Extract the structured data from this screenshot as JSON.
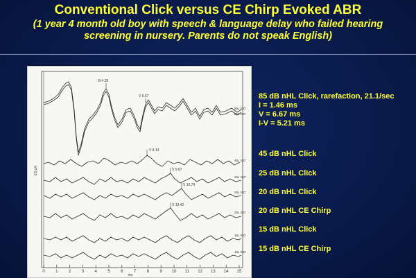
{
  "header": {
    "title": "Conventional Click versus CE Chirp Evoked ABR",
    "subtitle_line1": "(1 year 4 month old boy with speech & language delay who failed hearing",
    "subtitle_line2": "screening in nursery. Parents do not speak English)"
  },
  "labels": {
    "first": {
      "line1": "85 dB nHL Click, rarefaction, 21.1/sec",
      "line2": "I = 1.46 ms",
      "line3": "V = 6.67 ms",
      "line4": "I-V = 5.21 ms"
    },
    "items": [
      "45 dB nHL Click",
      "25 dB nHL Click",
      "20 dB nHL Click",
      "20 dB nHL CE Chirp",
      "15 dB nHL Click",
      "15 dB nHL CE Chirp"
    ]
  },
  "plot": {
    "axis_ticks": [
      "0",
      "1",
      "2",
      "3",
      "4",
      "5",
      "6",
      "7",
      "8",
      "9",
      "10",
      "11",
      "12",
      "13",
      "14",
      "15"
    ],
    "axis_unit": "ms",
    "y_unit": "0.5 µV",
    "peaks": {
      "p1": "III 4.35",
      "p2": "V 6.67",
      "p3": "V 8.13",
      "p4": "V 9.67",
      "p5": "V 10.79",
      "p6": "V 10.42"
    },
    "trace_tags": {
      "t1": "85L ISO",
      "t2": "85L ISO",
      "t3": "45L ISO",
      "t4": "25L ISO",
      "t5": "20L ISO",
      "t6": "20L ISO",
      "t7": "15L ISO",
      "t8": "15L ISO"
    }
  }
}
